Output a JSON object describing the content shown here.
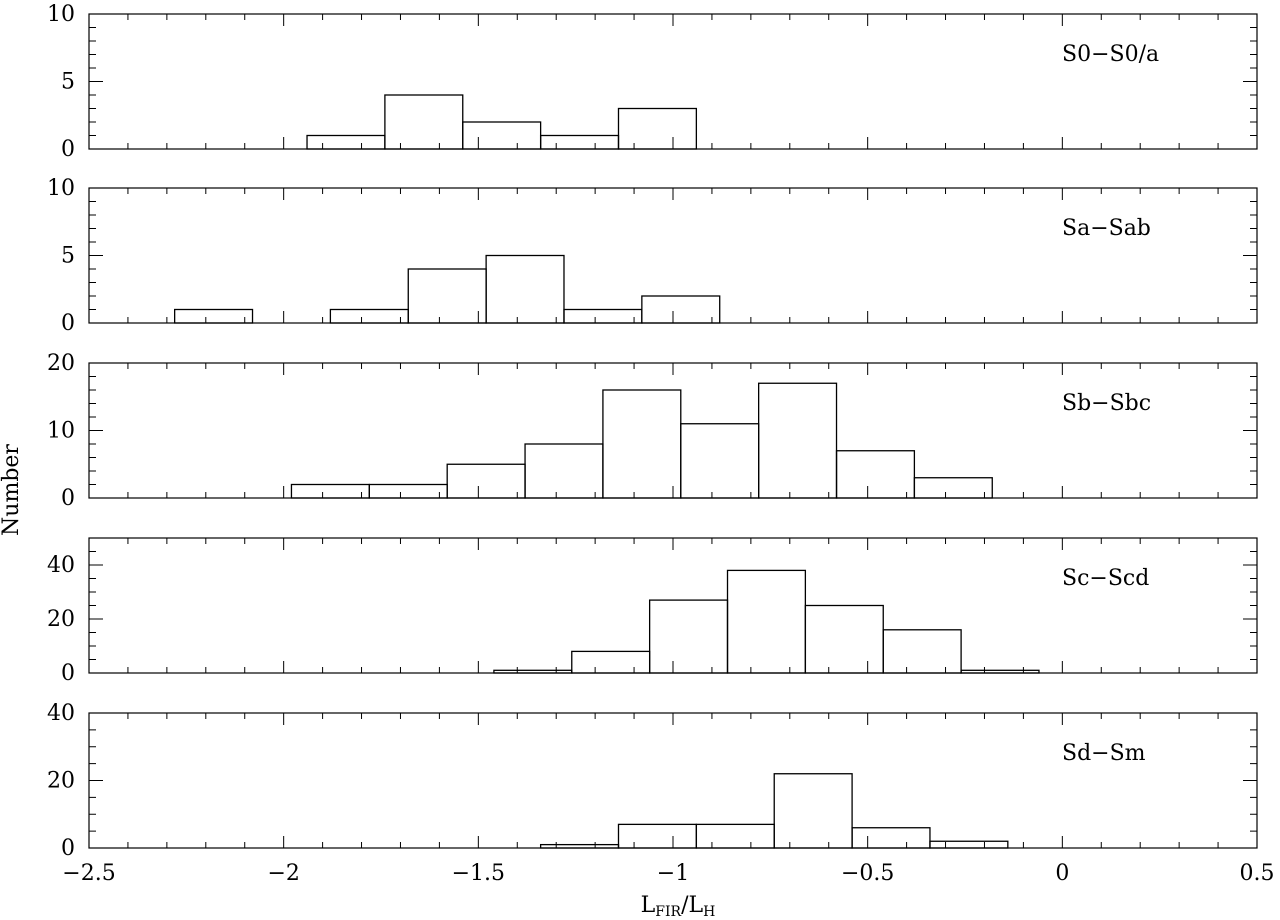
{
  "chart_data": {
    "type": "bar",
    "subtype": "histogram-stack",
    "xlabel": {
      "main": "L",
      "sub1": "FIR",
      "mid": "/L",
      "sub2": "H"
    },
    "ylabel": "Number",
    "xlim": [
      -2.5,
      0.5
    ],
    "xticks": [
      -2.5,
      -2,
      -1.5,
      -1,
      -0.5,
      0,
      0.5
    ],
    "xtick_labels": [
      "−2.5",
      "−2",
      "−1.5",
      "−1",
      "−0.5",
      "0",
      "0.5"
    ],
    "grid": false,
    "panels": [
      {
        "name": "S0−S0/a",
        "ylim": [
          0,
          10
        ],
        "yticks": [
          0,
          5,
          10
        ],
        "bin_width": 0.2,
        "bin_starts": [
          -1.94,
          -1.74,
          -1.54,
          -1.34,
          -1.14
        ],
        "values": [
          1,
          4,
          2,
          1,
          3
        ]
      },
      {
        "name": "Sa−Sab",
        "ylim": [
          0,
          10
        ],
        "yticks": [
          0,
          5,
          10
        ],
        "bin_width": 0.2,
        "bin_starts": [
          -2.28,
          -2.08,
          -1.88,
          -1.68,
          -1.48,
          -1.28,
          -1.08
        ],
        "values": [
          1,
          0,
          1,
          4,
          5,
          1,
          2
        ]
      },
      {
        "name": "Sb−Sbc",
        "ylim": [
          0,
          20
        ],
        "yticks": [
          0,
          10,
          20
        ],
        "bin_width": 0.2,
        "bin_starts": [
          -1.98,
          -1.78,
          -1.58,
          -1.38,
          -1.18,
          -0.98,
          -0.78,
          -0.58,
          -0.38
        ],
        "values": [
          2,
          2,
          5,
          8,
          16,
          11,
          17,
          7,
          3
        ]
      },
      {
        "name": "Sc−Scd",
        "ylim": [
          0,
          50
        ],
        "yticks": [
          0,
          20,
          40
        ],
        "bin_width": 0.2,
        "bin_starts": [
          -1.46,
          -1.26,
          -1.06,
          -0.86,
          -0.66,
          -0.46,
          -0.26
        ],
        "values": [
          1,
          8,
          27,
          38,
          25,
          16,
          1
        ]
      },
      {
        "name": "Sd−Sm",
        "ylim": [
          0,
          40
        ],
        "yticks": [
          0,
          20,
          40
        ],
        "bin_width": 0.2,
        "bin_starts": [
          -1.34,
          -1.14,
          -0.94,
          -0.74,
          -0.54,
          -0.34
        ],
        "values": [
          1,
          7,
          7,
          22,
          6,
          2
        ]
      }
    ]
  }
}
